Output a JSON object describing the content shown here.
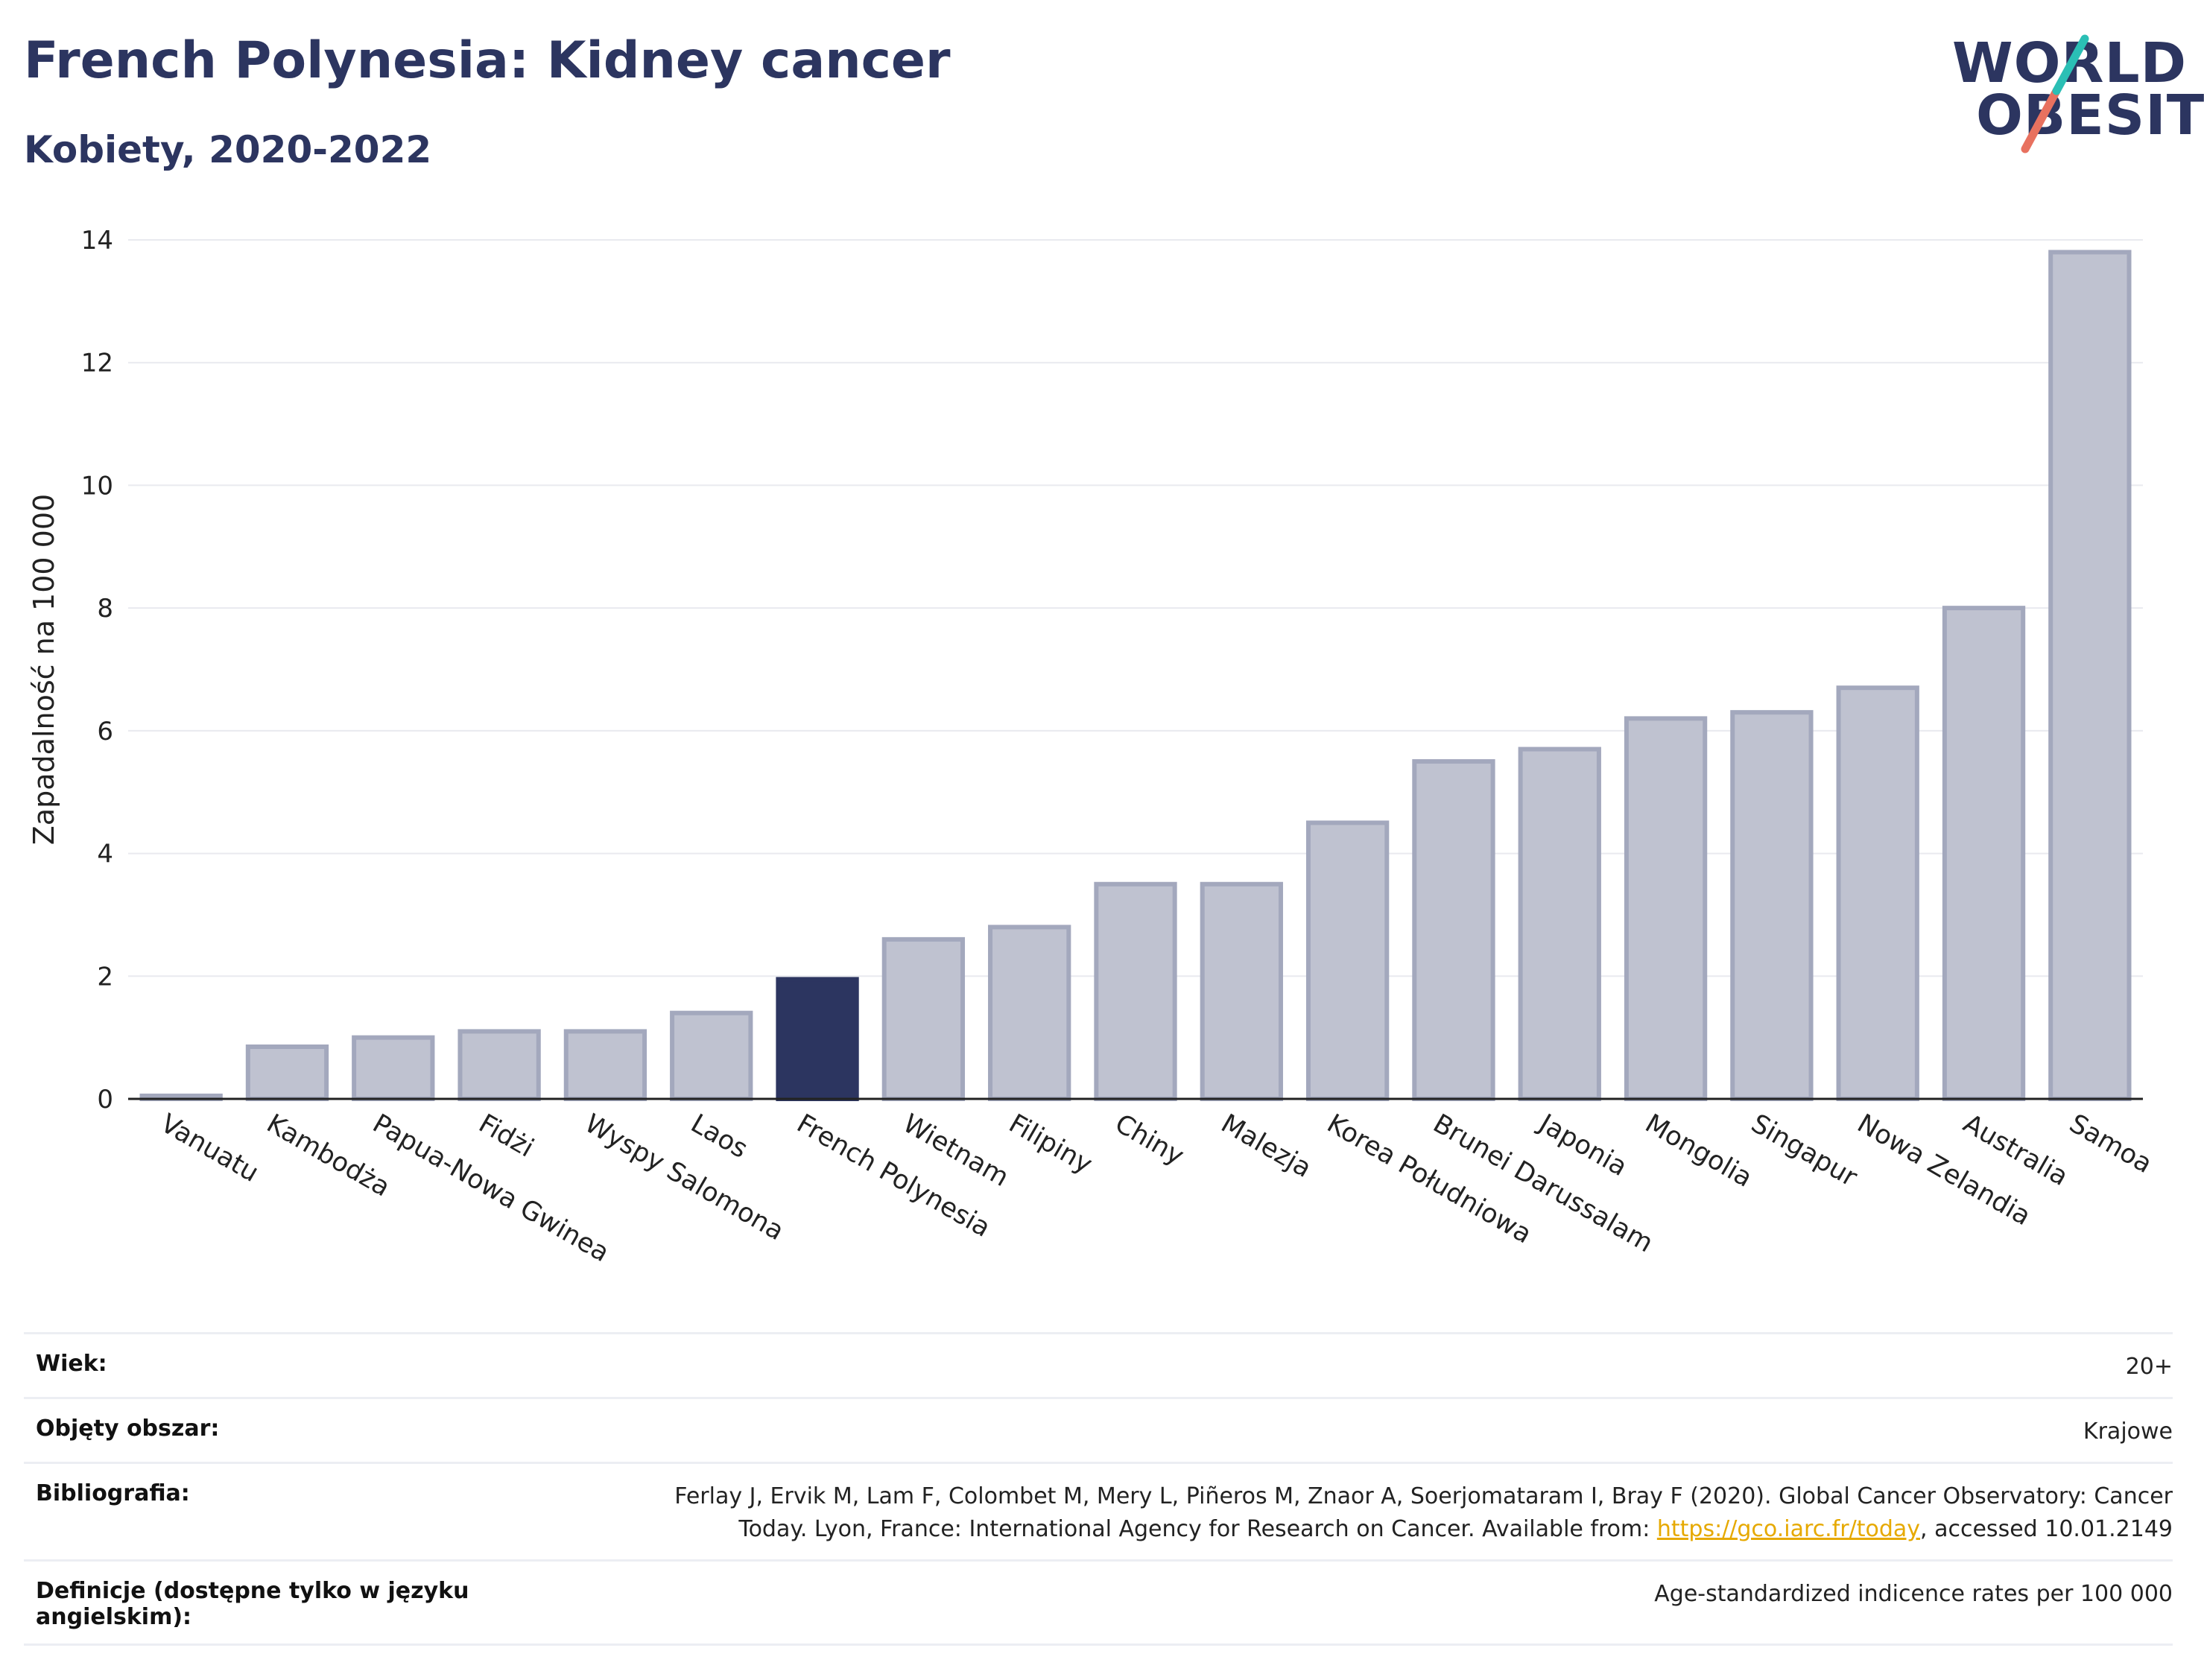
{
  "header": {
    "title": "French Polynesia: Kidney cancer",
    "subtitle": "Kobiety, 2020-2022"
  },
  "logo": {
    "line1": "WORLD",
    "line2": "OBESITY"
  },
  "colors": {
    "bar": "#bfc2d0",
    "bar_edge": "#a3a8bd",
    "highlight": "#2c3560",
    "grid": "#e9eaef",
    "axis": "#222222"
  },
  "chart_data": {
    "type": "bar",
    "title": "French Polynesia: Kidney cancer",
    "subtitle": "Kobiety, 2020-2022",
    "xlabel": "",
    "ylabel": "Zapadalność na 100 000",
    "ylim": [
      0,
      14
    ],
    "yticks": [
      0,
      2,
      4,
      6,
      8,
      10,
      12,
      14
    ],
    "grid": true,
    "highlight": "French Polynesia",
    "categories": [
      "Vanuatu",
      "Kambodża",
      "Papua-Nowa Gwinea",
      "Fidżi",
      "Wyspy Salomona",
      "Laos",
      "French Polynesia",
      "Wietnam",
      "Filipiny",
      "Chiny",
      "Malezja",
      "Korea Południowa",
      "Brunei Darussalam",
      "Japonia",
      "Mongolia",
      "Singapur",
      "Nowa Zelandia",
      "Australia",
      "Samoa"
    ],
    "values": [
      0.05,
      0.85,
      1.0,
      1.1,
      1.1,
      1.4,
      1.95,
      2.6,
      2.8,
      3.5,
      3.5,
      4.5,
      5.5,
      5.7,
      6.2,
      6.3,
      6.7,
      8.0,
      13.8
    ]
  },
  "meta": [
    {
      "key": "Wiek:",
      "value": "20+"
    },
    {
      "key": "Objęty obszar:",
      "value": "Krajowe"
    },
    {
      "key": "Bibliografia:",
      "value_line1": "Ferlay J, Ervik M, Lam F, Colombet M, Mery L, Piñeros M, Znaor A, Soerjomataram I, Bray F (2020). Global Cancer Observatory: Cancer",
      "value_pre": "Today. Lyon, France: International Agency for Research on Cancer. Available from: ",
      "link": "https://gco.iarc.fr/today",
      "value_post": ", accessed 10.01.2149"
    },
    {
      "key": "Definicje (dostępne tylko w języku angielskim):",
      "value": "Age-standardized indicence rates per 100 000"
    }
  ]
}
